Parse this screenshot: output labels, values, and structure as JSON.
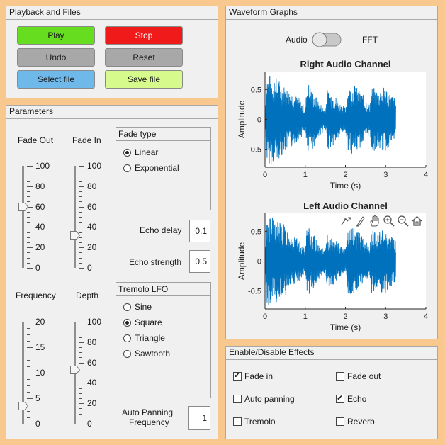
{
  "playback": {
    "title": "Playback and Files",
    "play": "Play",
    "stop": "Stop",
    "undo": "Undo",
    "reset": "Reset",
    "select_file": "Select file",
    "save_file": "Save file"
  },
  "parameters": {
    "title": "Parameters",
    "fade_out": {
      "label": "Fade Out",
      "ticks": [
        "100",
        "80",
        "60",
        "40",
        "20",
        "0"
      ],
      "value": 60
    },
    "fade_in": {
      "label": "Fade In",
      "ticks": [
        "100",
        "80",
        "60",
        "40",
        "20",
        "0"
      ],
      "value": 32
    },
    "fade_type": {
      "title": "Fade type",
      "options": [
        "Linear",
        "Exponential"
      ],
      "selected": "Linear"
    },
    "echo_delay": {
      "label": "Echo delay",
      "value": "0.1"
    },
    "echo_strength": {
      "label": "Echo strength",
      "value": "0.5"
    },
    "frequency": {
      "label": "Frequency",
      "ticks": [
        "20",
        "15",
        "10",
        "5",
        "0"
      ],
      "value": 3.5
    },
    "depth": {
      "label": "Depth",
      "ticks": [
        "100",
        "80",
        "60",
        "40",
        "20",
        "0"
      ],
      "value": 53
    },
    "tremolo": {
      "title": "Tremolo LFO",
      "options": [
        "Sine",
        "Square",
        "Triangle",
        "Sawtooth"
      ],
      "selected": "Square"
    },
    "auto_panning": {
      "label_line1": "Auto Panning",
      "label_line2": "Frequency",
      "value": "1"
    }
  },
  "waveform": {
    "title": "Waveform Graphs",
    "switch_left": "Audio",
    "switch_right": "FFT",
    "switch_state": "Audio"
  },
  "chart_data": [
    {
      "type": "line",
      "title": "Right Audio Channel",
      "xlabel": "Time (s)",
      "ylabel": "Amplitude",
      "xlim": [
        0,
        4
      ],
      "ylim": [
        -0.8,
        0.8
      ],
      "xticks": [
        "0",
        "1",
        "2",
        "3",
        "4"
      ],
      "yticks": [
        "0.5",
        "0",
        "-0.5"
      ],
      "series": [
        {
          "color": "#0072bd",
          "x_range": [
            0,
            3.25
          ],
          "envelope": [
            [
              0.0,
              0.15
            ],
            [
              0.05,
              0.75
            ],
            [
              0.15,
              0.75
            ],
            [
              0.3,
              0.7
            ],
            [
              0.5,
              0.55
            ],
            [
              0.7,
              0.45
            ],
            [
              0.85,
              0.35
            ],
            [
              0.95,
              0.25
            ],
            [
              1.0,
              0.2
            ],
            [
              1.05,
              0.65
            ],
            [
              1.15,
              0.55
            ],
            [
              1.3,
              0.35
            ],
            [
              1.45,
              0.2
            ],
            [
              1.5,
              0.2
            ],
            [
              1.55,
              0.5
            ],
            [
              1.7,
              0.45
            ],
            [
              1.9,
              0.25
            ],
            [
              2.0,
              0.2
            ],
            [
              2.05,
              0.5
            ],
            [
              2.2,
              0.6
            ],
            [
              2.4,
              0.45
            ],
            [
              2.55,
              0.3
            ],
            [
              2.6,
              0.25
            ],
            [
              2.65,
              0.55
            ],
            [
              2.8,
              0.5
            ],
            [
              3.0,
              0.55
            ],
            [
              3.1,
              0.45
            ],
            [
              3.25,
              0.35
            ]
          ]
        }
      ]
    },
    {
      "type": "line",
      "title": "Left Audio Channel",
      "xlabel": "Time (s)",
      "ylabel": "Amplitude",
      "xlim": [
        0,
        4
      ],
      "ylim": [
        -0.8,
        0.8
      ],
      "xticks": [
        "0",
        "1",
        "2",
        "3",
        "4"
      ],
      "yticks": [
        "0.5",
        "0",
        "-0.5"
      ],
      "series": [
        {
          "color": "#0072bd",
          "x_range": [
            0,
            3.25
          ],
          "envelope": [
            [
              0.0,
              0.15
            ],
            [
              0.05,
              0.75
            ],
            [
              0.15,
              0.75
            ],
            [
              0.3,
              0.72
            ],
            [
              0.5,
              0.6
            ],
            [
              0.7,
              0.45
            ],
            [
              0.85,
              0.35
            ],
            [
              0.95,
              0.25
            ],
            [
              1.0,
              0.2
            ],
            [
              1.05,
              0.6
            ],
            [
              1.15,
              0.5
            ],
            [
              1.3,
              0.35
            ],
            [
              1.45,
              0.2
            ],
            [
              1.5,
              0.2
            ],
            [
              1.55,
              0.45
            ],
            [
              1.7,
              0.4
            ],
            [
              1.9,
              0.25
            ],
            [
              2.0,
              0.2
            ],
            [
              2.05,
              0.55
            ],
            [
              2.2,
              0.55
            ],
            [
              2.4,
              0.45
            ],
            [
              2.55,
              0.3
            ],
            [
              2.6,
              0.25
            ],
            [
              2.65,
              0.55
            ],
            [
              2.8,
              0.5
            ],
            [
              3.0,
              0.55
            ],
            [
              3.1,
              0.45
            ],
            [
              3.25,
              0.35
            ]
          ]
        }
      ]
    }
  ],
  "effects": {
    "title": "Enable/Disable Effects",
    "items": [
      {
        "label": "Fade in",
        "checked": true
      },
      {
        "label": "Fade out",
        "checked": false
      },
      {
        "label": "Auto panning",
        "checked": false
      },
      {
        "label": "Echo",
        "checked": true
      },
      {
        "label": "Tremolo",
        "checked": false
      },
      {
        "label": "Reverb",
        "checked": false
      }
    ]
  },
  "colors": {
    "play": "#66dd1e",
    "stop": "#f01a1a",
    "gray": "#a8a8a8",
    "select": "#6fb8ea",
    "save": "#d6fa8c",
    "background": "#f9c88f",
    "waveform": "#0072bd"
  }
}
